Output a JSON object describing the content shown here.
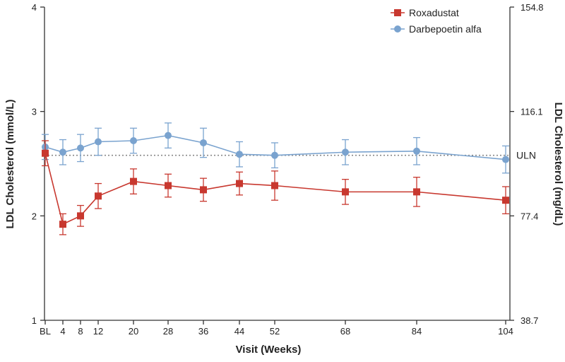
{
  "chart_data": {
    "type": "line",
    "xlabel": "Visit (Weeks)",
    "ylabel": "LDL Cholesterol (mmol/L)",
    "ylabel_right": "LDL Cholesterol (mg/dL)",
    "categories": [
      "BL",
      "4",
      "8",
      "12",
      "20",
      "28",
      "36",
      "44",
      "52",
      "68",
      "84",
      "104"
    ],
    "x": [
      0,
      4,
      8,
      12,
      20,
      28,
      36,
      44,
      52,
      68,
      84,
      104
    ],
    "ylim": [
      1,
      4
    ],
    "yticks": [
      "1",
      "2",
      "3",
      "4"
    ],
    "right_ticks": [
      "38.7",
      "77.4",
      "116.1",
      "154.8"
    ],
    "reference_line": {
      "label": "ULN",
      "value": 2.58
    },
    "legend_position": "top-right",
    "series": [
      {
        "name": "Roxadustat",
        "color": "#c8382f",
        "marker": "square",
        "values": [
          2.6,
          1.92,
          2.0,
          2.19,
          2.33,
          2.29,
          2.25,
          2.31,
          2.29,
          2.23,
          2.23,
          2.15
        ],
        "error": [
          0.12,
          0.1,
          0.1,
          0.12,
          0.12,
          0.11,
          0.11,
          0.11,
          0.14,
          0.12,
          0.14,
          0.13
        ]
      },
      {
        "name": "Darbepoetin alfa",
        "color": "#7aa3cf",
        "marker": "circle",
        "values": [
          2.66,
          2.61,
          2.65,
          2.71,
          2.72,
          2.77,
          2.7,
          2.59,
          2.58,
          2.61,
          2.62,
          2.54
        ],
        "error": [
          0.12,
          0.12,
          0.13,
          0.13,
          0.12,
          0.12,
          0.14,
          0.12,
          0.12,
          0.12,
          0.13,
          0.13
        ]
      }
    ]
  }
}
